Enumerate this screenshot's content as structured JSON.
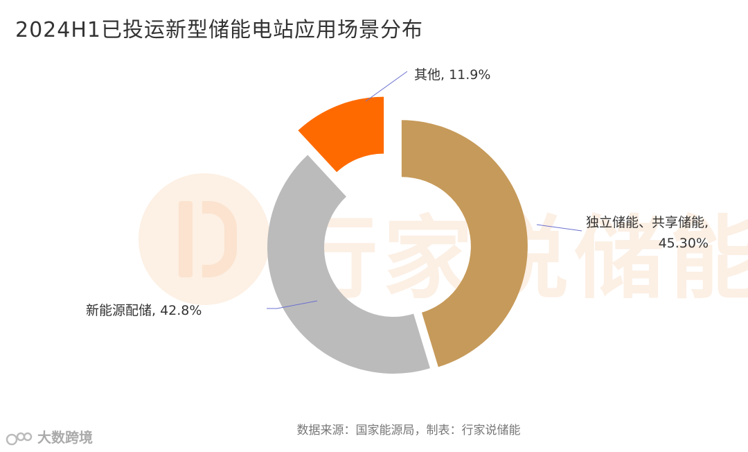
{
  "title": "2024H1已投运新型储能电站应用场景分布",
  "watermark": {
    "text": "行家说储能"
  },
  "source": "数据来源：国家能源局，制表：行家说储能",
  "brand": {
    "text": "大数跨境"
  },
  "chart_data": {
    "type": "pie",
    "style": "donut-exploded",
    "title": "2024H1已投运新型储能电站应用场景分布",
    "slices": [
      {
        "label": "独立储能、共享储能",
        "value": 45.3,
        "display": "45.30%",
        "color": "#c69a5a"
      },
      {
        "label": "新能源配储",
        "value": 42.8,
        "display": "42.8%",
        "color": "#bbbbbb"
      },
      {
        "label": "其他",
        "value": 11.9,
        "display": "11.9%",
        "color": "#ff6a00"
      }
    ]
  },
  "labels": {
    "other": "其他, 11.9%",
    "indep_line1": "独立储能、共享储能,",
    "indep_line2": "45.30%",
    "renew": "新能源配储, 42.8%"
  }
}
